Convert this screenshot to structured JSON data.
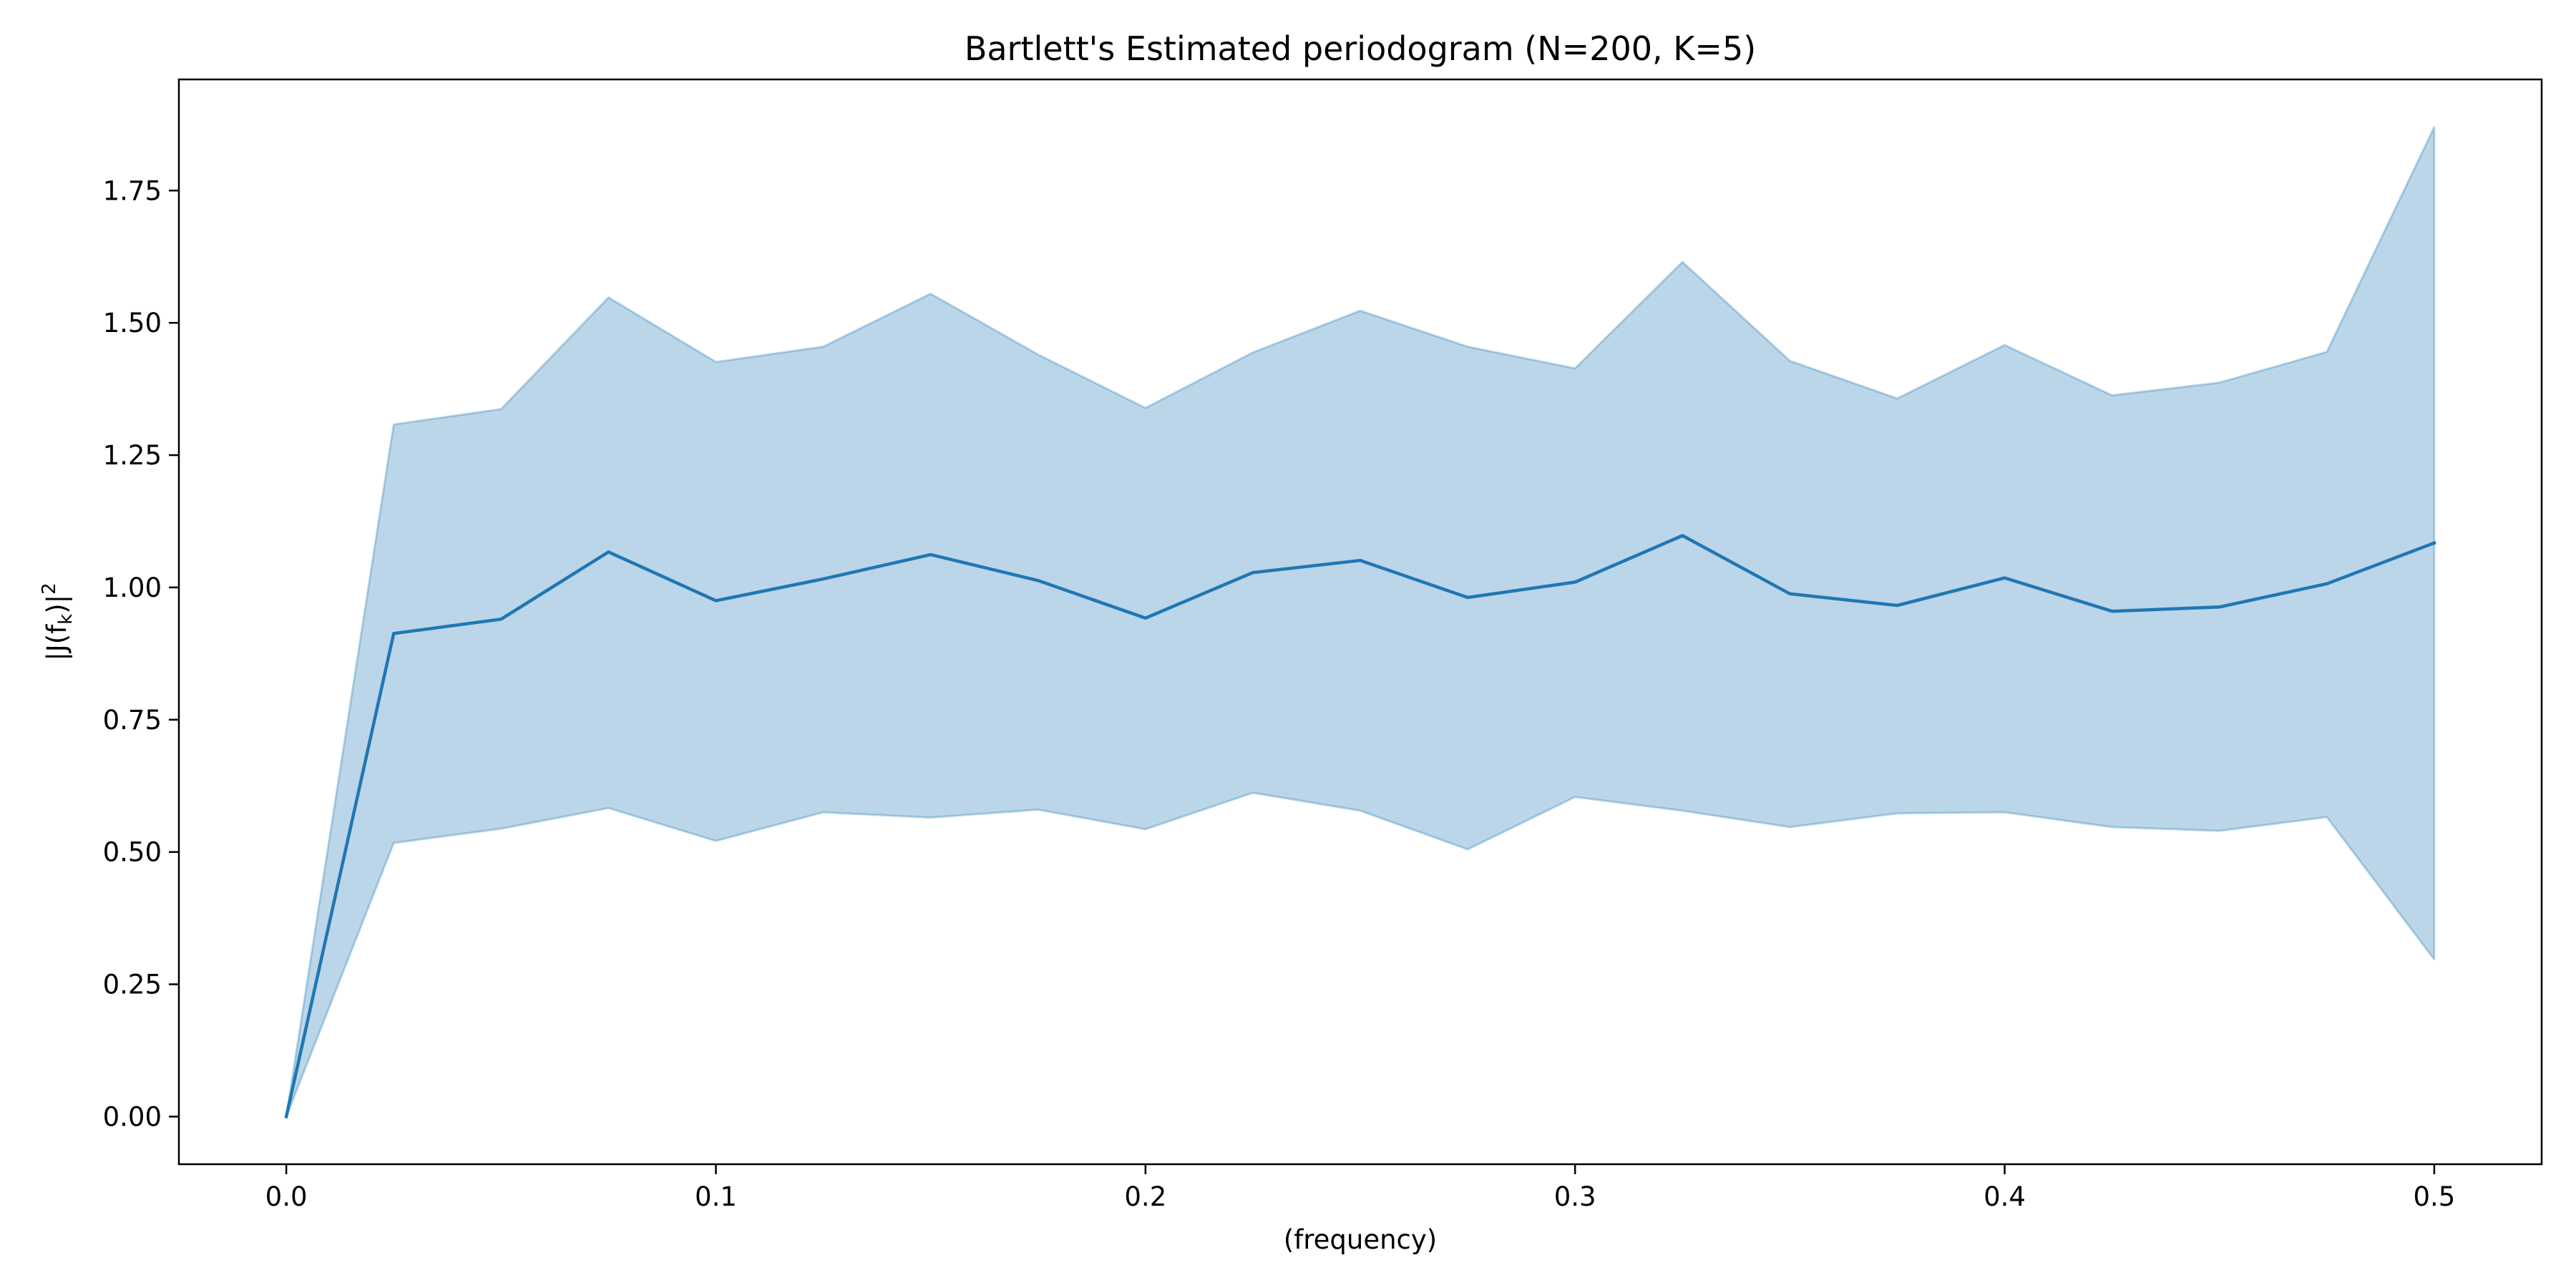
{
  "chart_data": {
    "type": "line",
    "title": "Bartlett's Estimated periodogram (N=200, K=5)",
    "xlabel": "(frequency)",
    "ylabel_base": "|J(f",
    "ylabel_sub": "k",
    "ylabel_close": ")|",
    "ylabel_sup": "2",
    "xlim": [
      -0.025,
      0.525
    ],
    "ylim": [
      -0.09,
      1.96
    ],
    "xticks": [
      0.0,
      0.1,
      0.2,
      0.3,
      0.4,
      0.5
    ],
    "xtick_labels": [
      "0.0",
      "0.1",
      "0.2",
      "0.3",
      "0.4",
      "0.5"
    ],
    "yticks": [
      0.0,
      0.25,
      0.5,
      0.75,
      1.0,
      1.25,
      1.5,
      1.75
    ],
    "ytick_labels": [
      "0.00",
      "0.25",
      "0.50",
      "0.75",
      "1.00",
      "1.25",
      "1.50",
      "1.75"
    ],
    "grid": false,
    "colors": {
      "line": "#1f77b4",
      "band": "#1f77b4"
    },
    "x": [
      0.0,
      0.025,
      0.05,
      0.075,
      0.1,
      0.125,
      0.15,
      0.175,
      0.2,
      0.225,
      0.25,
      0.275,
      0.3,
      0.325,
      0.35,
      0.375,
      0.4,
      0.425,
      0.45,
      0.475,
      0.5
    ],
    "series": [
      {
        "values": [
          0.0,
          0.913,
          0.94,
          1.067,
          0.975,
          1.016,
          1.062,
          1.013,
          0.942,
          1.028,
          1.051,
          0.981,
          1.01,
          1.098,
          0.988,
          0.966,
          1.018,
          0.955,
          0.963,
          1.007,
          1.084
        ],
        "lower": [
          0.0,
          0.517,
          0.544,
          0.583,
          0.521,
          0.575,
          0.565,
          0.58,
          0.543,
          0.612,
          0.578,
          0.505,
          0.604,
          0.578,
          0.547,
          0.573,
          0.575,
          0.547,
          0.54,
          0.566,
          0.297
        ],
        "upper": [
          0.0,
          1.308,
          1.337,
          1.548,
          1.426,
          1.455,
          1.555,
          1.44,
          1.339,
          1.444,
          1.523,
          1.455,
          1.414,
          1.615,
          1.428,
          1.357,
          1.458,
          1.363,
          1.387,
          1.445,
          1.87
        ]
      }
    ]
  }
}
